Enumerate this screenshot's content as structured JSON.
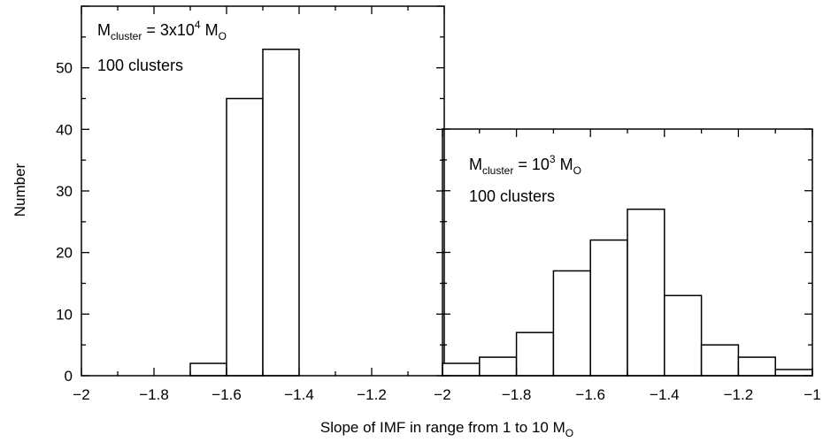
{
  "chart_data": [
    {
      "type": "bar",
      "annotation": {
        "cluster_prefix": "M",
        "cluster_sub": "cluster",
        "cluster_eq": " = 3x10",
        "cluster_sup": "4",
        "cluster_unit": " M",
        "cluster_unit_sub": "O",
        "count": "100 clusters"
      },
      "bin_edges": [
        -1.7,
        -1.6,
        -1.5,
        -1.4
      ],
      "values": [
        2,
        45,
        53
      ],
      "xlim": [
        -2,
        -1
      ],
      "ylim": [
        0,
        60
      ],
      "xticks": [
        "−2",
        "−1.8",
        "−1.6",
        "−1.4",
        "−1.2"
      ],
      "yticks": [
        "0",
        "10",
        "20",
        "30",
        "40",
        "50"
      ],
      "ylabel": "Number",
      "grid": false
    },
    {
      "type": "bar",
      "annotation": {
        "cluster_prefix": "M",
        "cluster_sub": "cluster",
        "cluster_eq": " = 10",
        "cluster_sup": "3",
        "cluster_unit": " M",
        "cluster_unit_sub": "O",
        "count": "100 clusters"
      },
      "bin_edges": [
        -2.0,
        -1.9,
        -1.8,
        -1.7,
        -1.6,
        -1.5,
        -1.4,
        -1.3,
        -1.2,
        -1.1,
        -1.0
      ],
      "values": [
        2,
        3,
        7,
        17,
        22,
        27,
        13,
        5,
        3,
        1
      ],
      "xlim": [
        -2,
        -1
      ],
      "ylim": [
        0,
        40
      ],
      "xticks": [
        "−2",
        "−1.8",
        "−1.6",
        "−1.4",
        "−1.2",
        "−1"
      ],
      "grid": false
    }
  ],
  "xlabel": {
    "main": "Slope of IMF in range from 1 to 10 M",
    "sub": "O"
  }
}
